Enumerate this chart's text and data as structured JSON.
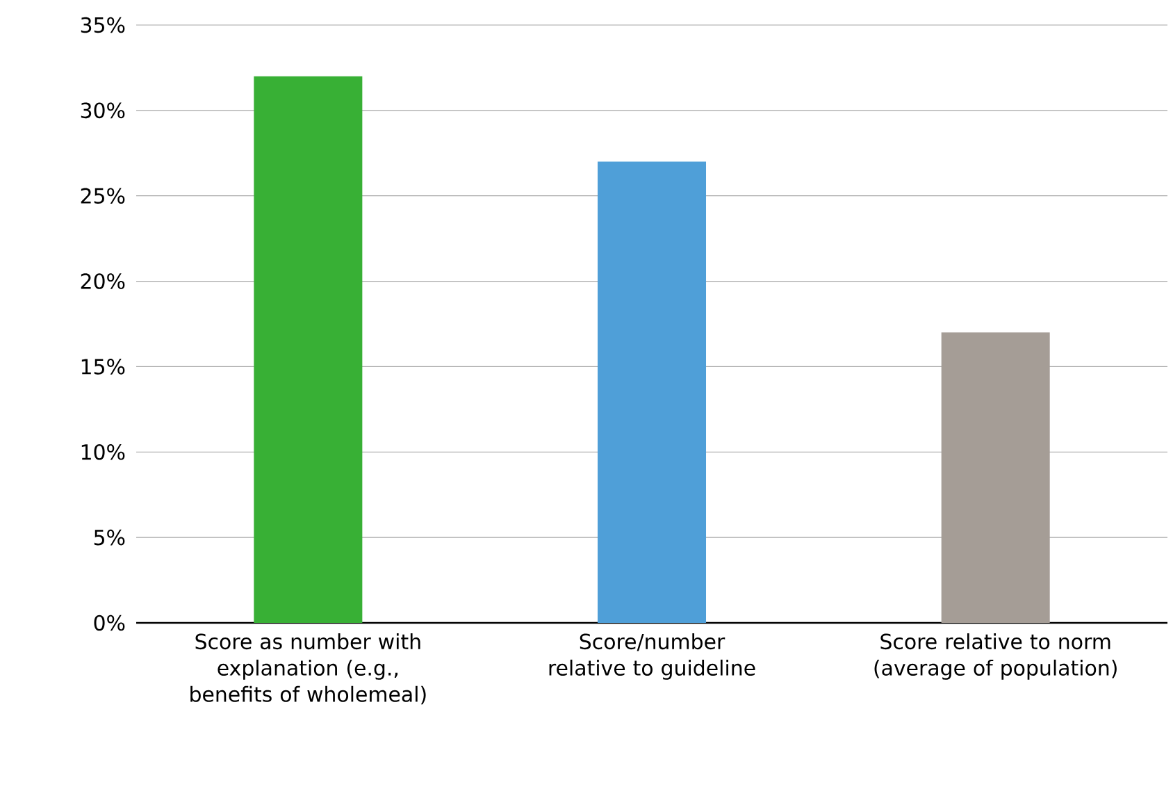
{
  "chart_data": {
    "type": "bar",
    "categories": [
      "Score as number with explanation (e.g., benefits of wholemeal)",
      "Score/number relative to guideline",
      "Score  relative to norm (average of population)"
    ],
    "values": [
      32,
      27,
      17
    ],
    "colors": [
      "#38b035",
      "#4f9fd8",
      "#a59d96"
    ],
    "ylim": [
      0,
      35
    ],
    "yticks": [
      {
        "value": 0,
        "label": "0%"
      },
      {
        "value": 5,
        "label": "5%"
      },
      {
        "value": 10,
        "label": "10%"
      },
      {
        "value": 15,
        "label": "15%"
      },
      {
        "value": 20,
        "label": "20%"
      },
      {
        "value": 25,
        "label": "25%"
      },
      {
        "value": 30,
        "label": "30%"
      },
      {
        "value": 35,
        "label": "35%"
      }
    ],
    "grid": "y"
  }
}
